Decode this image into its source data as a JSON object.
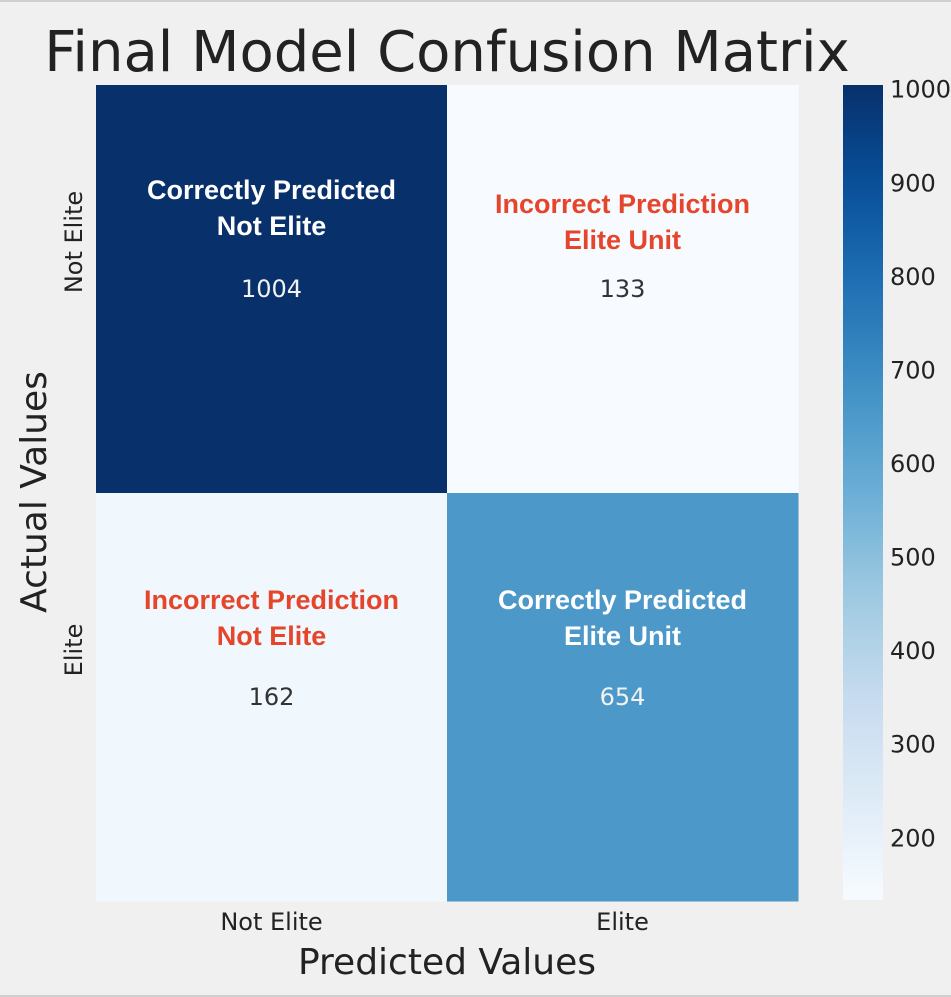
{
  "chart_data": {
    "type": "heatmap",
    "title": "Final Model Confusion Matrix",
    "xlabel": "Predicted Values",
    "ylabel": "Actual Values",
    "x_tick_labels": [
      "Not Elite",
      "Elite"
    ],
    "y_tick_labels": [
      "Not Elite",
      "Elite"
    ],
    "matrix": [
      [
        1004,
        133
      ],
      [
        162,
        654
      ]
    ],
    "cell_annotations": [
      [
        [
          "Correctly Predicted",
          "Not Elite"
        ],
        [
          "Incorrect Prediction",
          "Elite Unit"
        ]
      ],
      [
        [
          "Incorrect Prediction",
          "Not Elite"
        ],
        [
          "Correctly Predicted",
          "Elite Unit"
        ]
      ]
    ],
    "colormap": "Blues",
    "color_range": [
      133,
      1004
    ],
    "colorbar_ticks": [
      200,
      300,
      400,
      500,
      600,
      700,
      800,
      900,
      1000
    ],
    "grid": false,
    "colors": {
      "figure_background": "#f0f0f0",
      "label_text": "#222222",
      "correct_label": "#ffffff",
      "incorrect_label": "#e5452b",
      "dark_value_text": "#333333",
      "light_value_text": "#f2f2f2"
    }
  }
}
